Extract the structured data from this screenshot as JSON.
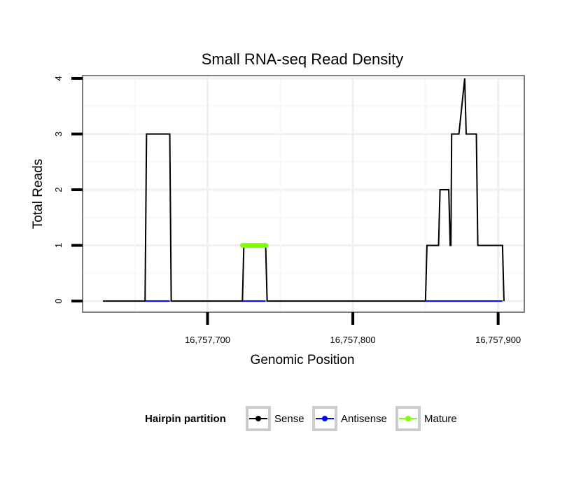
{
  "chart_data": {
    "type": "line",
    "title": "Small RNA-seq Read Density",
    "xlabel": "Genomic Position",
    "ylabel": "Total Reads",
    "xlim": [
      16757614,
      16757918
    ],
    "ylim": [
      -0.2,
      4.05
    ],
    "x_ticks": [
      16757700,
      16757800,
      16757900
    ],
    "x_tick_labels": [
      "16,757,700",
      "16,757,800",
      "16,757,900"
    ],
    "y_ticks": [
      0,
      1,
      2,
      3,
      4
    ],
    "y_tick_labels": [
      "0",
      "1",
      "2",
      "3",
      "4"
    ],
    "grid": true,
    "legend_position": "bottom",
    "legend": {
      "title": "Hairpin partition",
      "entries": [
        {
          "name": "Sense",
          "color": "#000000"
        },
        {
          "name": "Antisense",
          "color": "#0000ff"
        },
        {
          "name": "Mature",
          "color": "#7fff00"
        }
      ]
    },
    "series": [
      {
        "name": "Sense",
        "color": "#000000",
        "x": [
          16757628,
          16757657,
          16757658,
          16757674,
          16757675,
          16757724,
          16757725,
          16757740,
          16757741,
          16757850,
          16757851,
          16757859,
          16757860,
          16757866,
          16757867,
          16757867.5,
          16757868,
          16757871,
          16757873,
          16757877,
          16757877.5,
          16757878,
          16757885,
          16757886,
          16757893,
          16757894,
          16757903,
          16757904
        ],
        "values": [
          0,
          0,
          3,
          3,
          0,
          0,
          1,
          1,
          0,
          0,
          1,
          1,
          2,
          2,
          1,
          1,
          3,
          3,
          3,
          4,
          3.5,
          3,
          3,
          1,
          1,
          1,
          1,
          0
        ]
      },
      {
        "name": "Antisense",
        "color": "#0000ff",
        "x": [
          16757657,
          16757674,
          16757724,
          16757740,
          16757850,
          16757903
        ],
        "values": [
          0,
          0,
          0,
          0,
          0,
          0
        ],
        "segments": [
          [
            16757657,
            16757674
          ],
          [
            16757724,
            16757740
          ],
          [
            16757850,
            16757903
          ]
        ]
      },
      {
        "name": "Mature",
        "color": "#7fff00",
        "x": [
          16757724,
          16757740
        ],
        "values": [
          1,
          1
        ]
      }
    ]
  }
}
